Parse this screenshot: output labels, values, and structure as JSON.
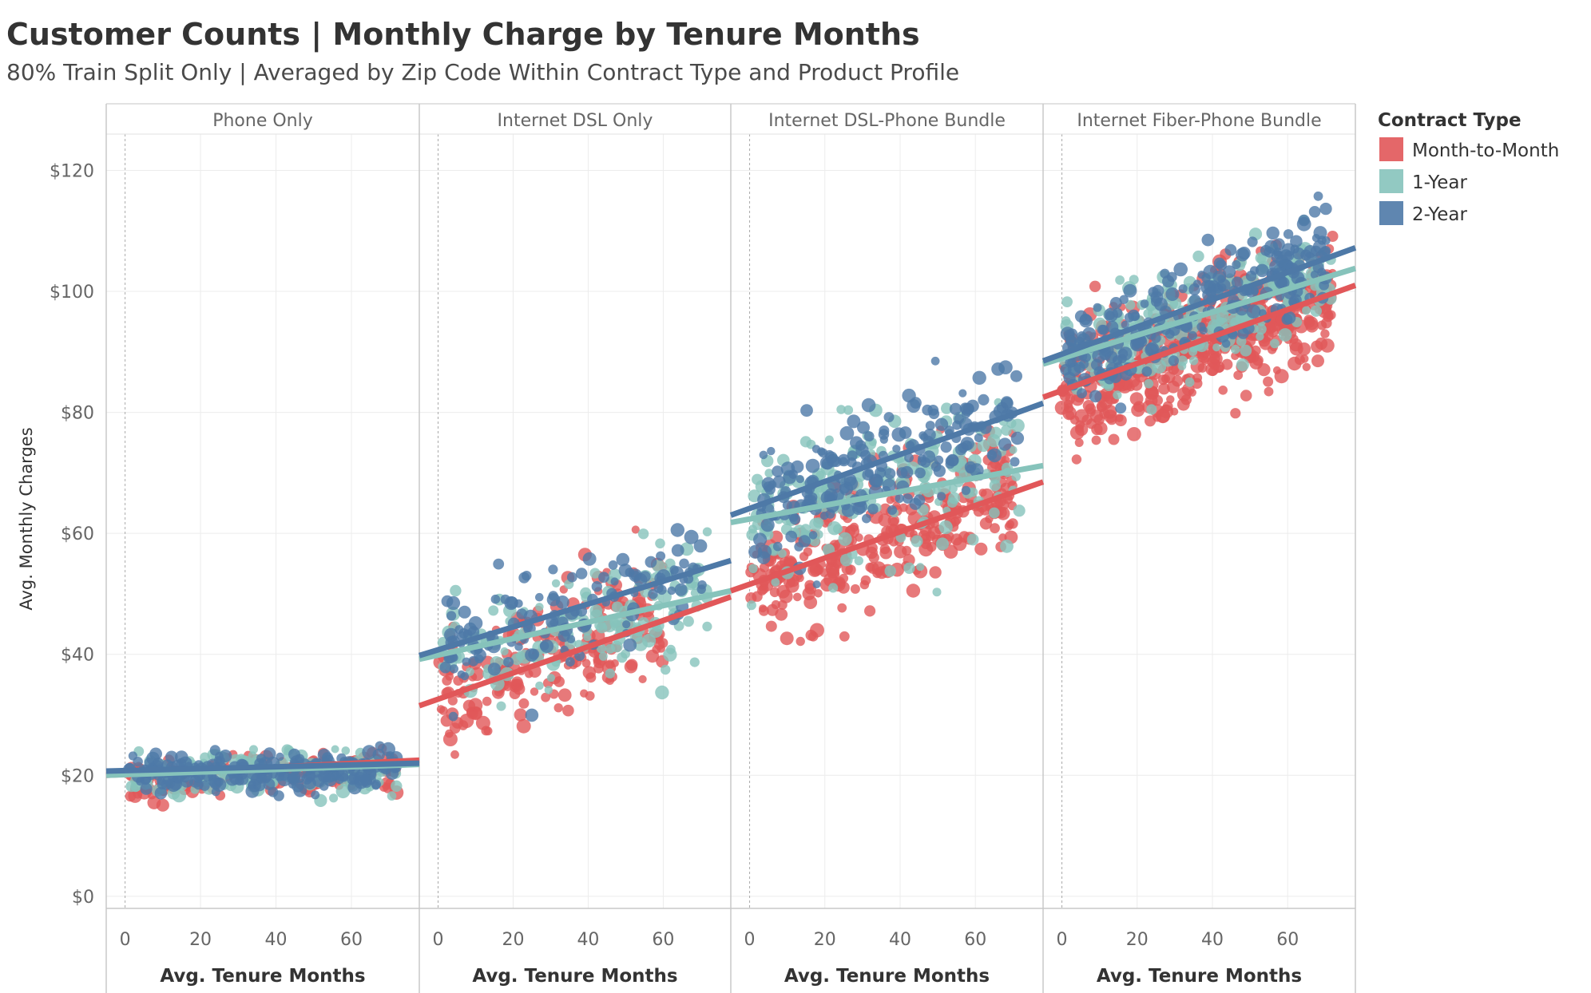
{
  "chart_data": {
    "type": "scatter",
    "title": "Customer Counts | Monthly Charge by Tenure Months",
    "subtitle": "80% Train Split Only | Averaged by Zip Code Within Contract Type and Product Profile",
    "xlabel": "Avg. Tenure Months",
    "ylabel": "Avg. Monthly Charges",
    "xlim": [
      -5,
      78
    ],
    "ylim": [
      -2,
      126
    ],
    "x_ticks": [
      0,
      20,
      40,
      60
    ],
    "x_tick_labels": [
      "0",
      "20",
      "40",
      "60"
    ],
    "y_ticks": [
      0,
      20,
      40,
      60,
      80,
      100,
      120
    ],
    "y_tick_labels": [
      "$0",
      "$20",
      "$40",
      "$60",
      "$80",
      "$100",
      "$120"
    ],
    "legend": {
      "title": "Contract Type",
      "position": "top-right",
      "entries": [
        {
          "name": "Month-to-Month",
          "color": "#e15759"
        },
        {
          "name": "1-Year",
          "color": "#86c3bb"
        },
        {
          "name": "2-Year",
          "color": "#4e79a7"
        }
      ]
    },
    "facets": [
      {
        "name": "Phone Only",
        "series": [
          {
            "name": "Month-to-Month",
            "x_range": [
              1,
              72
            ],
            "y_center": [
              19,
              21
            ],
            "spread": 3,
            "count": 160,
            "trend": [
              20.0,
              22.5
            ]
          },
          {
            "name": "1-Year",
            "x_range": [
              1,
              72
            ],
            "y_center": [
              20,
              21
            ],
            "spread": 3,
            "count": 140,
            "trend": [
              20.0,
              21.8
            ]
          },
          {
            "name": "2-Year",
            "x_range": [
              1,
              72
            ],
            "y_center": [
              20,
              21
            ],
            "spread": 3,
            "count": 200,
            "trend": [
              20.7,
              22.0
            ]
          }
        ]
      },
      {
        "name": "Internet DSL Only",
        "series": [
          {
            "name": "Month-to-Month",
            "x_range": [
              0,
              60
            ],
            "y_center": [
              32,
              48
            ],
            "spread": 9,
            "count": 210,
            "trend": [
              31.5,
              49.5
            ]
          },
          {
            "name": "1-Year",
            "x_range": [
              1,
              72
            ],
            "y_center": [
              39,
              50
            ],
            "spread": 8,
            "count": 150,
            "trend": [
              39.2,
              50.5
            ]
          },
          {
            "name": "2-Year",
            "x_range": [
              1,
              72
            ],
            "y_center": [
              41,
              55
            ],
            "spread": 7,
            "count": 130,
            "trend": [
              39.8,
              55.5
            ]
          }
        ]
      },
      {
        "name": "Internet DSL-Phone Bundle",
        "series": [
          {
            "name": "Month-to-Month",
            "x_range": [
              0,
              70
            ],
            "y_center": [
              52,
              67
            ],
            "spread": 8,
            "count": 320,
            "trend": [
              50.5,
              68.5
            ]
          },
          {
            "name": "1-Year",
            "x_range": [
              0,
              72
            ],
            "y_center": [
              62,
              71
            ],
            "spread": 9,
            "count": 190,
            "trend": [
              61.8,
              71.2
            ]
          },
          {
            "name": "2-Year",
            "x_range": [
              1,
              72
            ],
            "y_center": [
              64,
              80
            ],
            "spread": 8,
            "count": 210,
            "trend": [
              63.0,
              81.5
            ]
          }
        ]
      },
      {
        "name": "Internet Fiber-Phone Bundle",
        "series": [
          {
            "name": "Month-to-Month",
            "x_range": [
              0,
              72
            ],
            "y_center": [
              83,
              99
            ],
            "spread": 8,
            "count": 560,
            "trend": [
              82.5,
              101.0
            ]
          },
          {
            "name": "1-Year",
            "x_range": [
              1,
              72
            ],
            "y_center": [
              88,
              103
            ],
            "spread": 7,
            "count": 230,
            "trend": [
              88.0,
              103.8
            ]
          },
          {
            "name": "2-Year",
            "x_range": [
              1,
              72
            ],
            "y_center": [
              89,
              107
            ],
            "spread": 7,
            "count": 250,
            "trend": [
              88.5,
              107.2
            ]
          }
        ]
      }
    ]
  }
}
